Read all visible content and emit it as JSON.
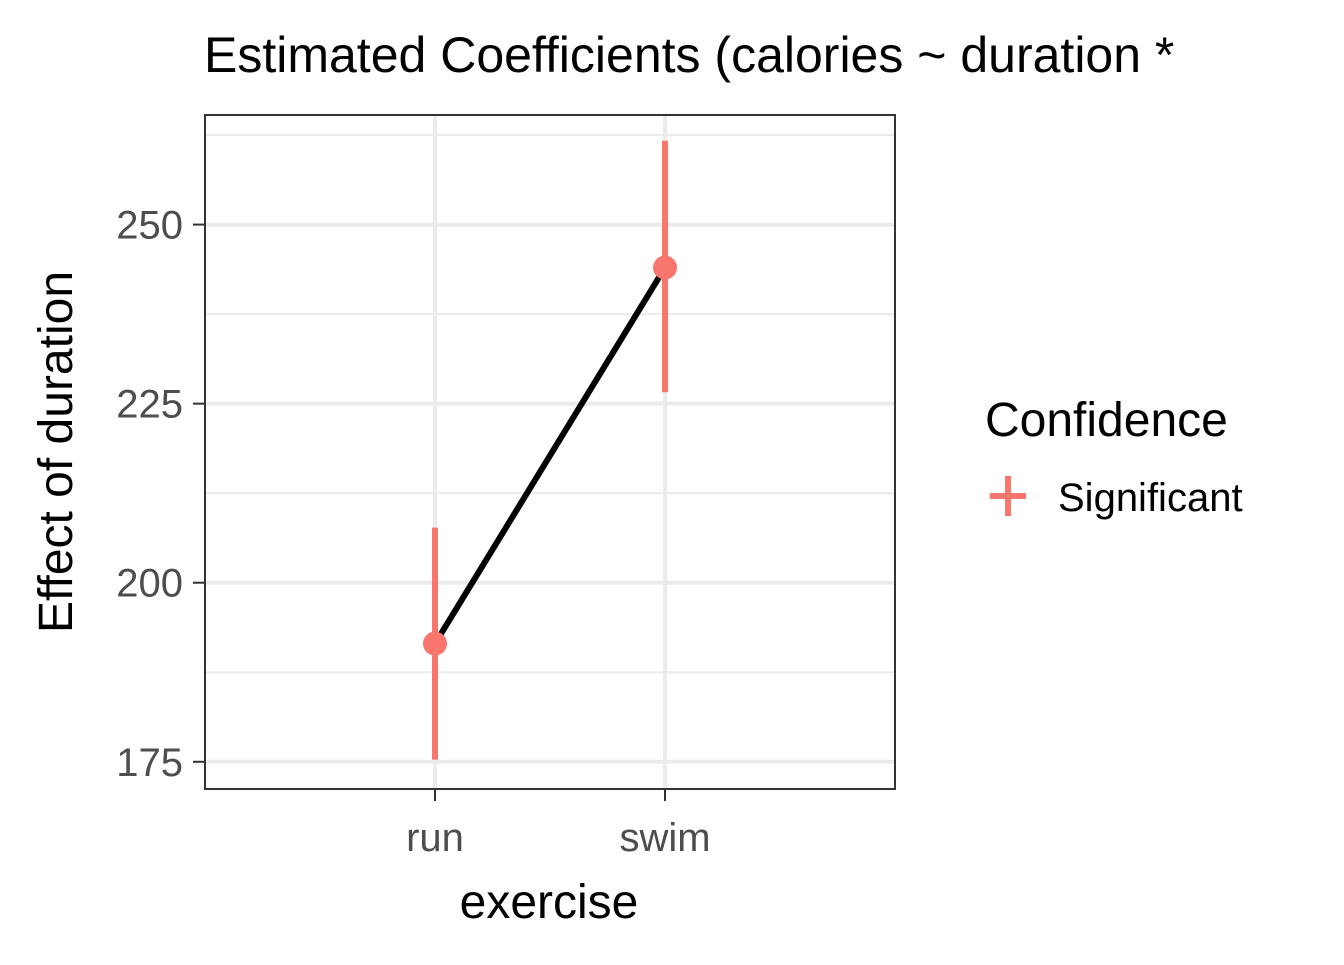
{
  "chart_data": {
    "type": "scatter",
    "title": "Estimated Coefficients (calories ~ duration *",
    "xlabel": "exercise",
    "ylabel": "Effect of duration",
    "categories": [
      "run",
      "swim"
    ],
    "series": [
      {
        "name": "Significant",
        "values": [
          191.5,
          244.0
        ],
        "ci_low": [
          175.3,
          226.6
        ],
        "ci_high": [
          207.7,
          261.7
        ],
        "color": "#F8766D"
      }
    ],
    "connecting_line_color": "#000000",
    "ylim": [
      171.2,
      265.3
    ],
    "y_ticks": [
      175,
      200,
      225,
      250
    ],
    "y_tick_labels": [
      "175",
      "200",
      "225",
      "250"
    ],
    "legend": {
      "title": "Confidence",
      "entries": [
        "Significant"
      ],
      "placement": "right"
    },
    "grid": true,
    "theme": "bw"
  }
}
